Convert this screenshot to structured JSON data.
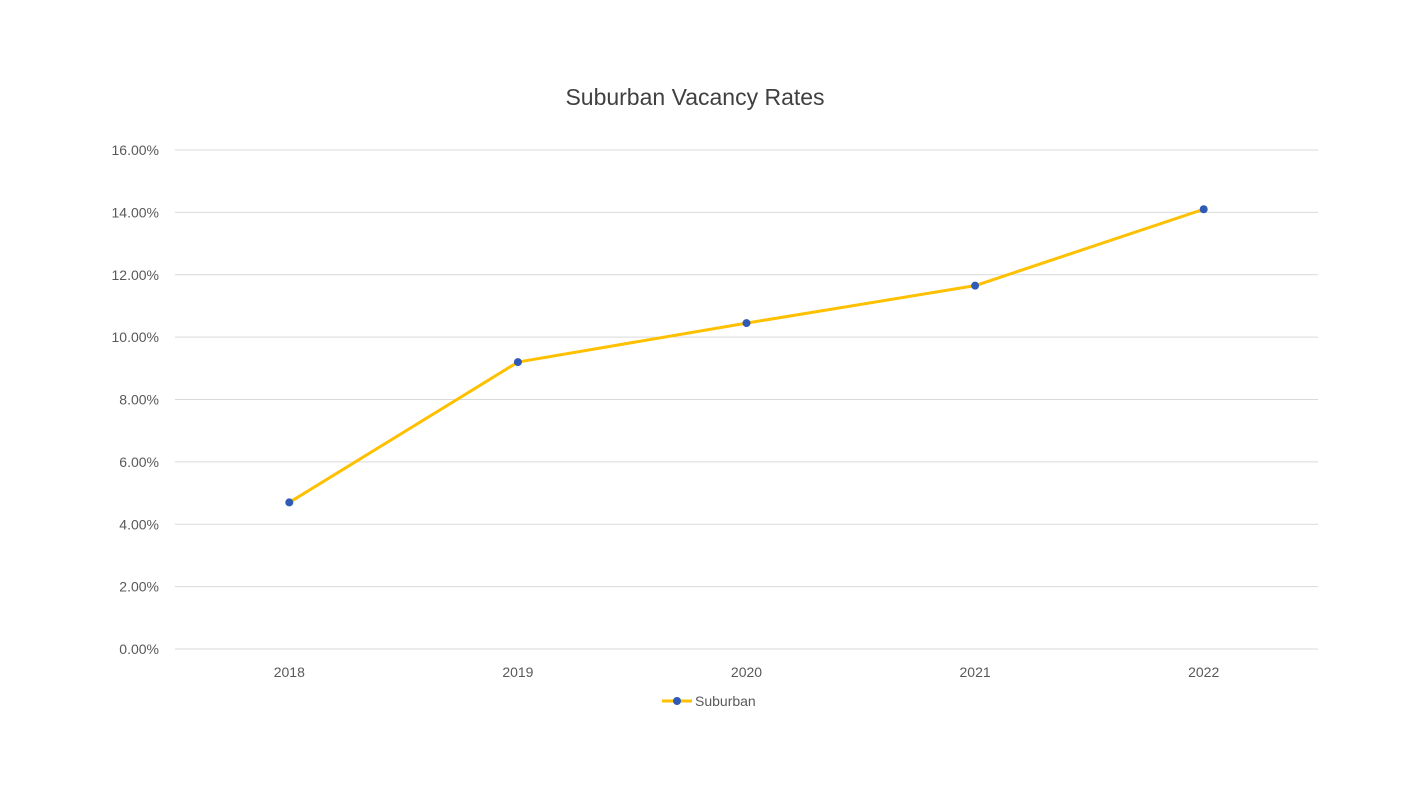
{
  "chart_data": {
    "type": "line",
    "title": "Suburban Vacancy Rates",
    "xlabel": "",
    "ylabel": "",
    "categories": [
      "2018",
      "2019",
      "2020",
      "2021",
      "2022"
    ],
    "series": [
      {
        "name": "Suburban",
        "values": [
          4.7,
          9.2,
          10.45,
          11.65,
          14.1
        ]
      }
    ],
    "ylim": [
      0,
      16
    ],
    "yticks": [
      0,
      2,
      4,
      6,
      8,
      10,
      12,
      14,
      16
    ],
    "ytick_labels": [
      "0.00%",
      "2.00%",
      "4.00%",
      "6.00%",
      "8.00%",
      "10.00%",
      "12.00%",
      "14.00%",
      "16.00%"
    ],
    "grid": true,
    "legend_position": "bottom",
    "colors": {
      "line": "#FFC000",
      "marker": "#2F5BB7",
      "grid": "#D9D9D9"
    }
  }
}
